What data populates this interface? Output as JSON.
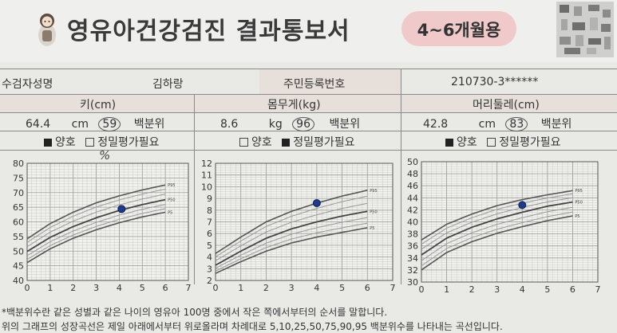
{
  "header": {
    "title": "영유아건강검진 결과통보서",
    "age_badge": "4~6개월용"
  },
  "info_row": {
    "name_label": "수검자성명",
    "name_value": "김하랑",
    "id_label": "주민등록번호",
    "id_value": "210730-3******"
  },
  "measurements": [
    {
      "label": "키(cm)",
      "value": "64.4",
      "unit": "cm",
      "percentile": "59",
      "percentile_label": "백분위",
      "options": [
        {
          "label": "양호",
          "checked": true
        },
        {
          "label": "정밀평가필요",
          "checked": false
        }
      ]
    },
    {
      "label": "몸무게(kg)",
      "value": "8.6",
      "unit": "kg",
      "percentile": "96",
      "percentile_label": "백분위",
      "options": [
        {
          "label": "양호",
          "checked": false
        },
        {
          "label": "정밀평가필요",
          "checked": true
        }
      ]
    },
    {
      "label": "머리둘레(cm)",
      "value": "42.8",
      "unit": "cm",
      "percentile": "83",
      "percentile_label": "백분위",
      "options": [
        {
          "label": "양호",
          "checked": true
        },
        {
          "label": "정밀평가필요",
          "checked": false
        }
      ]
    }
  ],
  "handwritten_mark": "%",
  "chart_data": [
    {
      "type": "line",
      "title": "키(cm)",
      "xlim": [
        0,
        7
      ],
      "ylim": [
        40,
        80
      ],
      "x_ticks": [
        0,
        1,
        2,
        3,
        4,
        5,
        6,
        7
      ],
      "y_ticks": [
        40,
        45,
        50,
        55,
        60,
        65,
        70,
        75,
        80
      ],
      "series": [
        {
          "name": "P95",
          "x": [
            0,
            1,
            2,
            3,
            4,
            5,
            6
          ],
          "values": [
            54.2,
            59.4,
            63.3,
            66.5,
            68.9,
            70.9,
            72.6
          ]
        },
        {
          "name": "P50",
          "x": [
            0,
            1,
            2,
            3,
            4,
            5,
            6
          ],
          "values": [
            49.9,
            54.7,
            58.4,
            61.4,
            63.9,
            65.9,
            67.6
          ]
        },
        {
          "name": "P5",
          "x": [
            0,
            1,
            2,
            3,
            4,
            5,
            6
          ],
          "values": [
            46.1,
            50.8,
            54.4,
            57.3,
            59.7,
            61.7,
            63.3
          ]
        }
      ],
      "point": {
        "x": 4.1,
        "y": 64.4
      }
    },
    {
      "type": "line",
      "title": "몸무게(kg)",
      "xlim": [
        0,
        7
      ],
      "ylim": [
        2,
        12
      ],
      "x_ticks": [
        0,
        1,
        2,
        3,
        4,
        5,
        6,
        7
      ],
      "y_ticks": [
        2,
        3,
        4,
        5,
        6,
        7,
        8,
        9,
        10,
        11,
        12
      ],
      "series": [
        {
          "name": "P95",
          "x": [
            0,
            1,
            2,
            3,
            4,
            5,
            6
          ],
          "values": [
            4.3,
            5.7,
            7.0,
            7.9,
            8.6,
            9.2,
            9.7
          ]
        },
        {
          "name": "P50",
          "x": [
            0,
            1,
            2,
            3,
            4,
            5,
            6
          ],
          "values": [
            3.3,
            4.5,
            5.6,
            6.4,
            7.0,
            7.5,
            7.9
          ]
        },
        {
          "name": "P5",
          "x": [
            0,
            1,
            2,
            3,
            4,
            5,
            6
          ],
          "values": [
            2.6,
            3.6,
            4.5,
            5.2,
            5.7,
            6.1,
            6.5
          ]
        }
      ],
      "point": {
        "x": 4.0,
        "y": 8.6
      }
    },
    {
      "type": "line",
      "title": "머리둘레(cm)",
      "xlim": [
        0,
        7
      ],
      "ylim": [
        30,
        50
      ],
      "x_ticks": [
        0,
        1,
        2,
        3,
        4,
        5,
        6,
        7
      ],
      "y_ticks": [
        30,
        32,
        34,
        36,
        38,
        40,
        42,
        44,
        46,
        48,
        50
      ],
      "series": [
        {
          "name": "P95",
          "x": [
            0,
            1,
            2,
            3,
            4,
            5,
            6
          ],
          "values": [
            37.0,
            39.6,
            41.3,
            42.7,
            43.7,
            44.5,
            45.2
          ]
        },
        {
          "name": "P50",
          "x": [
            0,
            1,
            2,
            3,
            4,
            5,
            6
          ],
          "values": [
            34.5,
            37.3,
            39.1,
            40.5,
            41.6,
            42.6,
            43.3
          ]
        },
        {
          "name": "P5",
          "x": [
            0,
            1,
            2,
            3,
            4,
            5,
            6
          ],
          "values": [
            32.0,
            34.9,
            36.7,
            38.1,
            39.2,
            40.2,
            41.0
          ]
        }
      ],
      "point": {
        "x": 4.0,
        "y": 42.8
      }
    }
  ],
  "footnotes": [
    "*백분위수란 같은 성별과 같은 나이의 영유아 100명 중에서 작은 쪽에서부터의 순서를 말합니다.",
    "위의 그래프의 성장곡선은 제일 아래에서부터 위로올라며 차례대로 5,10,25,50,75,90,95 백분위수를 나타내는 곡선입니다."
  ]
}
